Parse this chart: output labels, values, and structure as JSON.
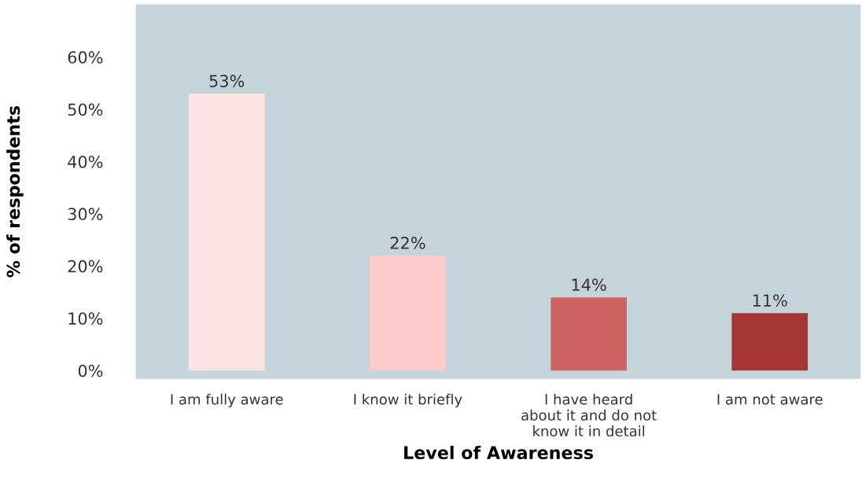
{
  "chart_data": {
    "type": "bar",
    "ylabel": "% of respondents",
    "xlabel": "Level of Awareness",
    "categories": [
      "I am fully aware",
      "I know it briefly",
      "I have heard\nabout it and do not\nknow it in detail",
      "I am not aware"
    ],
    "values": [
      53,
      22,
      14,
      11
    ],
    "colors": [
      "#fde4e4",
      "#fdcbcb",
      "#cc6262",
      "#a33535"
    ],
    "value_labels": [
      "53%",
      "22%",
      "14%",
      "11%"
    ],
    "ylim": [
      -1.5,
      70
    ],
    "yticks": [
      {
        "value": 0,
        "label": "0%"
      },
      {
        "value": 10,
        "label": "10%"
      },
      {
        "value": 20,
        "label": "20%"
      },
      {
        "value": 30,
        "label": "30%"
      },
      {
        "value": 40,
        "label": "40%"
      },
      {
        "value": 50,
        "label": "50%"
      },
      {
        "value": 60,
        "label": "60%"
      }
    ],
    "grid": false,
    "legend": false
  }
}
